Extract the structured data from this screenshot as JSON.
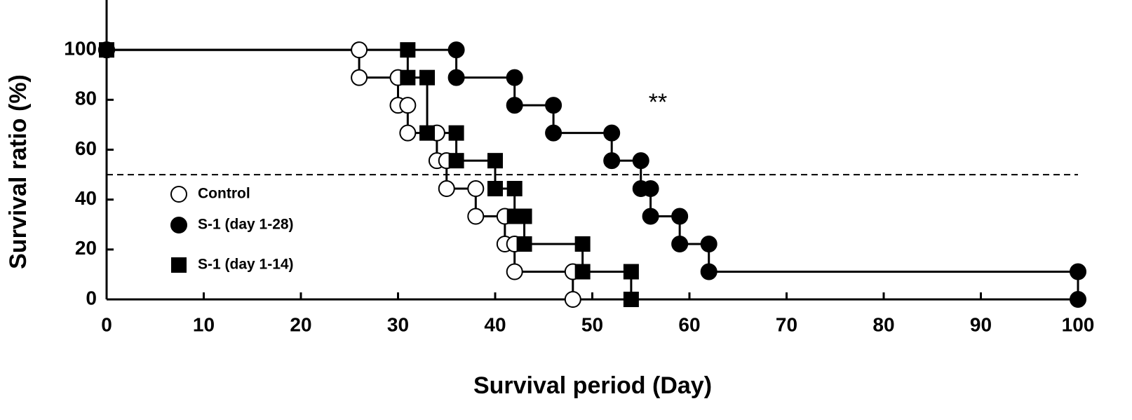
{
  "chart_data": {
    "type": "step",
    "x_label": "Survival period (Day)",
    "y_label": "Survival ratio (%)",
    "annotation": "**",
    "reference_line": 50,
    "xlim": [
      0,
      100
    ],
    "ylim": [
      0,
      120
    ],
    "xticks": [
      0,
      10,
      20,
      30,
      40,
      50,
      60,
      70,
      80,
      90,
      100
    ],
    "yticks": [
      0,
      20,
      40,
      60,
      80,
      100
    ],
    "series": [
      {
        "name": "Control",
        "color": "#000000",
        "marker": "circle",
        "filled": false,
        "x": [
          0,
          26,
          26,
          30,
          30,
          31,
          31,
          34,
          34,
          35,
          35,
          38,
          38,
          41,
          41,
          42,
          42,
          48,
          48
        ],
        "values": [
          100,
          100,
          88.9,
          88.9,
          77.8,
          77.8,
          66.7,
          66.7,
          55.6,
          55.6,
          44.4,
          44.4,
          33.3,
          33.3,
          22.2,
          22.2,
          11.1,
          11.1,
          0
        ]
      },
      {
        "name": "S-1 (day 1-28)",
        "color": "#000000",
        "marker": "circle",
        "filled": true,
        "x": [
          0,
          36,
          36,
          42,
          42,
          46,
          46,
          52,
          52,
          55,
          55,
          56,
          56,
          59,
          59,
          62,
          62,
          100,
          100
        ],
        "values": [
          100,
          100,
          88.9,
          88.9,
          77.8,
          77.8,
          66.7,
          66.7,
          55.6,
          55.6,
          44.4,
          44.4,
          33.3,
          33.3,
          22.2,
          22.2,
          11.1,
          11.1,
          0
        ]
      },
      {
        "name": "S-1 (day 1-14)",
        "color": "#000000",
        "marker": "square",
        "filled": true,
        "x": [
          0,
          31,
          31,
          33,
          33,
          36,
          36,
          40,
          40,
          42,
          42,
          43,
          43,
          49,
          49,
          54,
          54
        ],
        "values": [
          100,
          100,
          88.9,
          88.9,
          66.7,
          66.7,
          55.6,
          55.6,
          44.4,
          44.4,
          33.3,
          33.3,
          22.2,
          22.2,
          11.1,
          11.1,
          0
        ]
      }
    ]
  }
}
